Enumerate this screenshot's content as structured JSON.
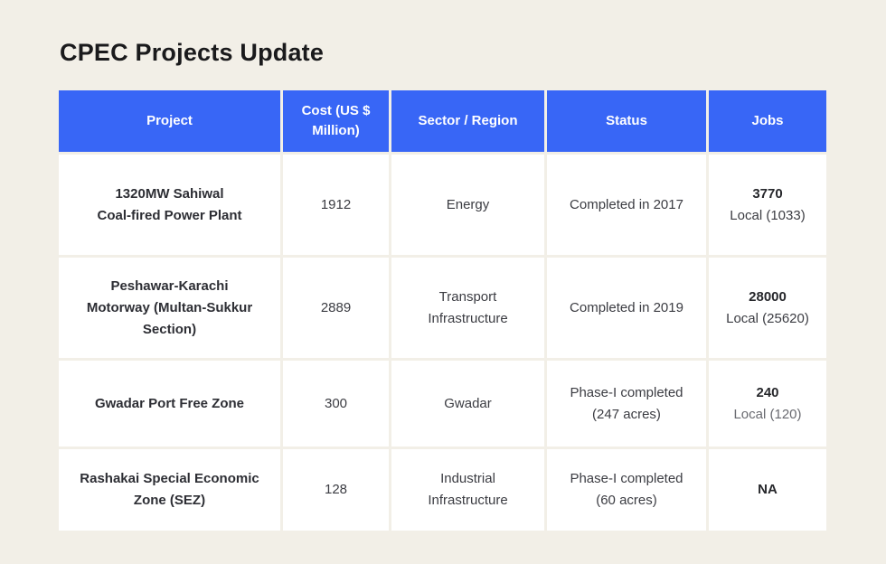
{
  "title": "CPEC Projects Update",
  "colors": {
    "page_background": "#F2EFE7",
    "header_background": "#3866F6",
    "header_text": "#FFFFFF",
    "cell_background": "#FFFFFF",
    "body_text": "#3B3C42"
  },
  "table": {
    "columns": {
      "project": "Project",
      "cost": "Cost (US $\nMillion)",
      "sector": "Sector / Region",
      "status": "Status",
      "jobs": "Jobs"
    },
    "rows": [
      {
        "project": "1320MW Sahiwal\nCoal-fired Power Plant",
        "cost": "1912",
        "sector": "Energy",
        "status": "Completed in 2017",
        "jobs_total": "3770",
        "jobs_local": "Local (1033)"
      },
      {
        "project": "Peshawar-Karachi\nMotorway (Multan-Sukkur\nSection)",
        "cost": "2889",
        "sector": "Transport\nInfrastructure",
        "status": "Completed in 2019",
        "jobs_total": "28000",
        "jobs_local": "Local (25620)"
      },
      {
        "project": "Gwadar Port Free Zone",
        "cost": "300",
        "sector": "Gwadar",
        "status": "Phase-I completed\n(247 acres)",
        "jobs_total": "240",
        "jobs_local": "Local (120)"
      },
      {
        "project": "Rashakai Special Economic\nZone (SEZ)",
        "cost": "128",
        "sector": "Industrial\nInfrastructure",
        "status": "Phase-I completed\n(60 acres)",
        "jobs_total": "NA",
        "jobs_local": null
      }
    ]
  },
  "chart_data": {
    "type": "table",
    "title": "CPEC Projects Update",
    "columns": [
      "Project",
      "Cost (US $ Million)",
      "Sector / Region",
      "Status",
      "Jobs"
    ],
    "rows": [
      [
        "1320MW Sahiwal Coal-fired Power Plant",
        1912,
        "Energy",
        "Completed in 2017",
        "3770 Local (1033)"
      ],
      [
        "Peshawar-Karachi Motorway (Multan-Sukkur Section)",
        2889,
        "Transport Infrastructure",
        "Completed in 2019",
        "28000 Local (25620)"
      ],
      [
        "Gwadar Port Free Zone",
        300,
        "Gwadar",
        "Phase-I completed (247 acres)",
        "240 Local (120)"
      ],
      [
        "Rashakai Special Economic Zone (SEZ)",
        128,
        "Industrial Infrastructure",
        "Phase-I completed (60 acres)",
        "NA"
      ]
    ]
  }
}
